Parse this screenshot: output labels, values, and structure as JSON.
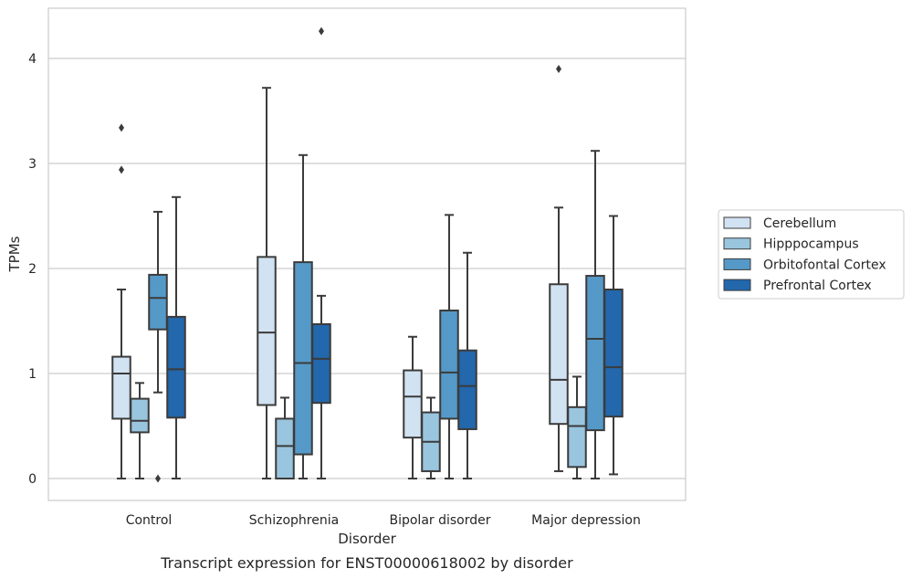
{
  "chart_data": {
    "type": "box",
    "title": "",
    "caption": "Transcript expression for ENST00000618002 by disorder",
    "xlabel": "Disorder",
    "ylabel": "TPMs",
    "ylim": [
      -0.2,
      4.5
    ],
    "yticks": [
      0,
      1,
      2,
      3,
      4
    ],
    "grid": "horizontal",
    "legend_position": "right",
    "categories": [
      "Control",
      "Schizophrenia",
      "Bipolar disorder",
      "Major depression"
    ],
    "series": [
      {
        "name": "Cerebellum",
        "color": "#d1e2f2",
        "boxes": [
          {
            "whislo": 0.0,
            "q1": 0.57,
            "med": 1.0,
            "q3": 1.16,
            "whishi": 1.8,
            "fliers": [
              2.94,
              3.34
            ]
          },
          {
            "whislo": 0.0,
            "q1": 0.7,
            "med": 1.39,
            "q3": 2.11,
            "whishi": 3.72,
            "fliers": []
          },
          {
            "whislo": 0.0,
            "q1": 0.39,
            "med": 0.78,
            "q3": 1.03,
            "whishi": 1.35,
            "fliers": []
          },
          {
            "whislo": 0.07,
            "q1": 0.52,
            "med": 0.94,
            "q3": 1.85,
            "whishi": 2.58,
            "fliers": [
              3.9
            ]
          }
        ]
      },
      {
        "name": "Hipppocampus",
        "color": "#9ac5de",
        "boxes": [
          {
            "whislo": 0.0,
            "q1": 0.44,
            "med": 0.55,
            "q3": 0.76,
            "whishi": 0.91,
            "fliers": []
          },
          {
            "whislo": 0.0,
            "q1": 0.0,
            "med": 0.31,
            "q3": 0.57,
            "whishi": 0.77,
            "fliers": []
          },
          {
            "whislo": 0.0,
            "q1": 0.07,
            "med": 0.35,
            "q3": 0.63,
            "whishi": 0.77,
            "fliers": []
          },
          {
            "whislo": 0.0,
            "q1": 0.11,
            "med": 0.5,
            "q3": 0.68,
            "whishi": 0.97,
            "fliers": []
          }
        ]
      },
      {
        "name": "Orbitofontal Cortex",
        "color": "#5599c8",
        "boxes": [
          {
            "whislo": 0.82,
            "q1": 1.42,
            "med": 1.72,
            "q3": 1.94,
            "whishi": 2.54,
            "fliers": [
              0.0
            ]
          },
          {
            "whislo": 0.0,
            "q1": 0.23,
            "med": 1.1,
            "q3": 2.06,
            "whishi": 3.08,
            "fliers": []
          },
          {
            "whislo": 0.0,
            "q1": 0.57,
            "med": 1.01,
            "q3": 1.6,
            "whishi": 2.51,
            "fliers": []
          },
          {
            "whislo": 0.0,
            "q1": 0.46,
            "med": 1.33,
            "q3": 1.93,
            "whishi": 3.12,
            "fliers": []
          }
        ]
      },
      {
        "name": "Prefrontal Cortex",
        "color": "#2367ac",
        "boxes": [
          {
            "whislo": 0.0,
            "q1": 0.58,
            "med": 1.04,
            "q3": 1.54,
            "whishi": 2.68,
            "fliers": []
          },
          {
            "whislo": 0.0,
            "q1": 0.72,
            "med": 1.14,
            "q3": 1.47,
            "whishi": 1.74,
            "fliers": [
              4.26
            ]
          },
          {
            "whislo": 0.0,
            "q1": 0.47,
            "med": 0.88,
            "q3": 1.22,
            "whishi": 2.15,
            "fliers": []
          },
          {
            "whislo": 0.04,
            "q1": 0.59,
            "med": 1.06,
            "q3": 1.8,
            "whishi": 2.5,
            "fliers": []
          }
        ]
      }
    ]
  }
}
